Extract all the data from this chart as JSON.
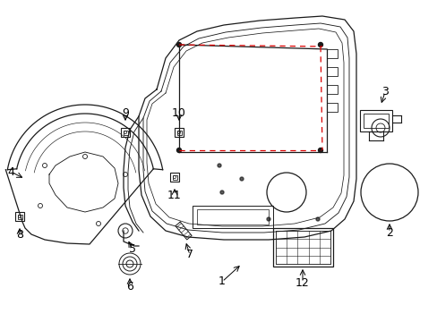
{
  "background_color": "#ffffff",
  "line_color": "#1a1a1a",
  "red_dash_color": "#dd0000",
  "figsize": [
    4.89,
    3.6
  ],
  "dpi": 100
}
